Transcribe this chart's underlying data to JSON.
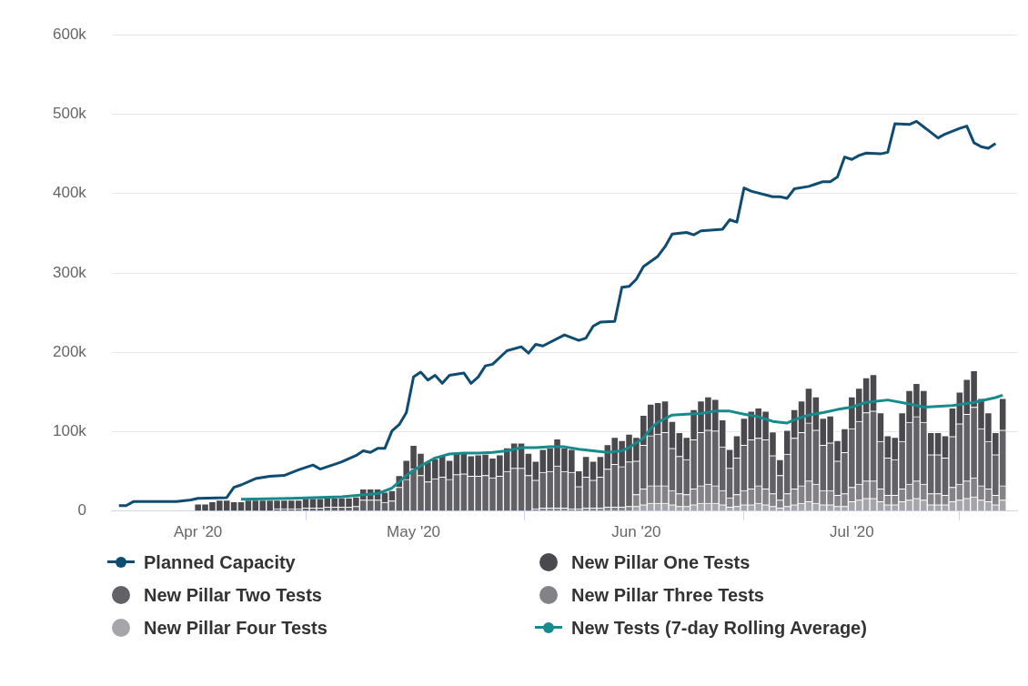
{
  "chart_data": {
    "type": "bar",
    "stacked": true,
    "grid": "y",
    "legend": "bottom",
    "x": [
      "2020-04-01",
      "2020-04-02",
      "2020-04-03",
      "2020-04-04",
      "2020-04-05",
      "2020-04-06",
      "2020-04-07",
      "2020-04-08",
      "2020-04-09",
      "2020-04-10",
      "2020-04-11",
      "2020-04-12",
      "2020-04-13",
      "2020-04-14",
      "2020-04-15",
      "2020-04-16",
      "2020-04-17",
      "2020-04-18",
      "2020-04-19",
      "2020-04-20",
      "2020-04-21",
      "2020-04-22",
      "2020-04-23",
      "2020-04-24",
      "2020-04-25",
      "2020-04-26",
      "2020-04-27",
      "2020-04-28",
      "2020-04-29",
      "2020-04-30",
      "2020-05-01",
      "2020-05-02",
      "2020-05-03",
      "2020-05-04",
      "2020-05-05",
      "2020-05-06",
      "2020-05-07",
      "2020-05-08",
      "2020-05-09",
      "2020-05-10",
      "2020-05-11",
      "2020-05-12",
      "2020-05-13",
      "2020-05-14",
      "2020-05-15",
      "2020-05-16",
      "2020-05-17",
      "2020-05-18",
      "2020-05-19",
      "2020-05-20",
      "2020-05-21",
      "2020-05-22",
      "2020-05-23",
      "2020-05-24",
      "2020-05-25",
      "2020-05-26",
      "2020-05-27",
      "2020-05-28",
      "2020-05-29",
      "2020-05-30",
      "2020-05-31",
      "2020-06-01",
      "2020-06-02",
      "2020-06-03",
      "2020-06-04",
      "2020-06-05",
      "2020-06-06",
      "2020-06-07",
      "2020-06-08",
      "2020-06-09",
      "2020-06-10",
      "2020-06-11",
      "2020-06-12",
      "2020-06-13",
      "2020-06-14",
      "2020-06-15",
      "2020-06-16",
      "2020-06-17",
      "2020-06-18",
      "2020-06-19",
      "2020-06-20",
      "2020-06-21",
      "2020-06-22",
      "2020-06-23",
      "2020-06-24",
      "2020-06-25",
      "2020-06-26",
      "2020-06-27",
      "2020-06-28",
      "2020-06-29",
      "2020-06-30",
      "2020-07-01",
      "2020-07-02",
      "2020-07-03",
      "2020-07-04",
      "2020-07-05",
      "2020-07-06",
      "2020-07-07",
      "2020-07-08",
      "2020-07-09",
      "2020-07-10",
      "2020-07-11",
      "2020-07-12",
      "2020-07-13",
      "2020-07-14",
      "2020-07-15",
      "2020-07-16",
      "2020-07-17",
      "2020-07-18",
      "2020-07-19",
      "2020-07-20",
      "2020-07-21",
      "2020-07-22"
    ],
    "xlim": [
      "2020-03-20",
      "2020-07-24"
    ],
    "xticks": [
      {
        "value": "2020-04-01",
        "label": "Apr '20"
      },
      {
        "value": "2020-05-01",
        "label": "May '20"
      },
      {
        "value": "2020-06-01",
        "label": "Jun '20"
      },
      {
        "value": "2020-07-01",
        "label": "Jul '20"
      }
    ],
    "ylim": [
      0,
      600000
    ],
    "yticks": [
      {
        "value": 0,
        "label": "0"
      },
      {
        "value": 100000,
        "label": "100k"
      },
      {
        "value": 200000,
        "label": "200k"
      },
      {
        "value": 300000,
        "label": "300k"
      },
      {
        "value": 400000,
        "label": "400k"
      },
      {
        "value": 500000,
        "label": "500k"
      },
      {
        "value": 600000,
        "label": "600k"
      }
    ],
    "series": [
      {
        "name": "Planned Capacity",
        "type": "line",
        "color": "#0f4c72",
        "x": [
          "2020-03-21",
          "2020-03-22",
          "2020-03-23",
          "2020-03-29",
          "2020-03-31",
          "2020-04-01",
          "2020-04-05",
          "2020-04-06",
          "2020-04-07",
          "2020-04-09",
          "2020-04-11",
          "2020-04-13",
          "2020-04-15",
          "2020-04-17",
          "2020-04-18",
          "2020-04-20",
          "2020-04-21",
          "2020-04-23",
          "2020-04-24",
          "2020-04-25",
          "2020-04-26",
          "2020-04-27",
          "2020-04-28",
          "2020-04-29",
          "2020-04-30",
          "2020-05-01",
          "2020-05-02",
          "2020-05-03",
          "2020-05-04",
          "2020-05-05",
          "2020-05-06",
          "2020-05-08",
          "2020-05-09",
          "2020-05-10",
          "2020-05-11",
          "2020-05-12",
          "2020-05-14",
          "2020-05-16",
          "2020-05-17",
          "2020-05-18",
          "2020-05-19",
          "2020-05-22",
          "2020-05-24",
          "2020-05-25",
          "2020-05-26",
          "2020-05-27",
          "2020-05-29",
          "2020-05-30",
          "2020-05-31",
          "2020-06-01",
          "2020-06-02",
          "2020-06-04",
          "2020-06-05",
          "2020-06-06",
          "2020-06-08",
          "2020-06-09",
          "2020-06-10",
          "2020-06-13",
          "2020-06-14",
          "2020-06-15",
          "2020-06-16",
          "2020-06-17",
          "2020-06-20",
          "2020-06-21",
          "2020-06-22",
          "2020-06-23",
          "2020-06-25",
          "2020-06-26",
          "2020-06-27",
          "2020-06-28",
          "2020-06-29",
          "2020-06-30",
          "2020-07-01",
          "2020-07-02",
          "2020-07-03",
          "2020-07-05",
          "2020-07-06",
          "2020-07-07",
          "2020-07-09",
          "2020-07-10",
          "2020-07-13",
          "2020-07-14",
          "2020-07-16",
          "2020-07-17",
          "2020-07-18",
          "2020-07-19",
          "2020-07-20",
          "2020-07-21"
        ],
        "values": [
          7000,
          7000,
          12000,
          12000,
          14000,
          16000,
          17000,
          30000,
          33000,
          41000,
          44000,
          45000,
          52000,
          58000,
          53000,
          59000,
          62000,
          70000,
          76000,
          74000,
          79000,
          79000,
          101000,
          109000,
          124000,
          169000,
          175000,
          165000,
          171000,
          161000,
          171000,
          174000,
          161000,
          169000,
          183000,
          185000,
          202000,
          207000,
          199000,
          210000,
          208000,
          222000,
          215000,
          218000,
          233000,
          238000,
          239000,
          282000,
          283000,
          292000,
          308000,
          321000,
          333000,
          349000,
          351000,
          348000,
          353000,
          355000,
          367000,
          364000,
          407000,
          403000,
          396000,
          396000,
          394000,
          406000,
          409000,
          412000,
          415000,
          415000,
          421000,
          446000,
          443000,
          448000,
          451000,
          450000,
          452000,
          488000,
          487000,
          491000,
          470000,
          475000,
          482000,
          485000,
          464000,
          459000,
          457000,
          463000
        ]
      },
      {
        "name": "New Pillar Four Tests",
        "color": "#a6a6aa",
        "values": [
          null,
          null,
          null,
          null,
          null,
          null,
          null,
          null,
          null,
          null,
          null,
          null,
          null,
          null,
          null,
          null,
          null,
          null,
          null,
          null,
          null,
          null,
          null,
          null,
          null,
          null,
          null,
          null,
          null,
          null,
          null,
          null,
          null,
          null,
          null,
          null,
          null,
          null,
          null,
          null,
          null,
          null,
          null,
          null,
          null,
          null,
          null,
          null,
          null,
          null,
          null,
          null,
          null,
          null,
          null,
          null,
          null,
          null,
          null,
          null,
          null,
          6000,
          8000,
          10000,
          10000,
          10000,
          8000,
          6000,
          6000,
          8000,
          10000,
          10000,
          10000,
          8000,
          5000,
          6000,
          8000,
          8000,
          10000,
          8000,
          6000,
          4000,
          6000,
          8000,
          10000,
          12000,
          10000,
          8000,
          8000,
          6000,
          6000,
          12000,
          14000,
          16000,
          16000,
          12000,
          8000,
          8000,
          12000,
          14000,
          16000,
          14000,
          8000,
          8000,
          8000,
          12000,
          14000,
          16000,
          18000,
          14000,
          12000,
          8000,
          14000
        ]
      },
      {
        "name": "New Pillar Three Tests",
        "color": "#838387",
        "values": [
          null,
          null,
          null,
          null,
          null,
          null,
          null,
          null,
          null,
          null,
          null,
          null,
          null,
          null,
          null,
          null,
          null,
          null,
          null,
          null,
          null,
          null,
          null,
          null,
          null,
          null,
          null,
          null,
          null,
          null,
          null,
          null,
          null,
          null,
          null,
          null,
          null,
          null,
          null,
          null,
          null,
          null,
          null,
          null,
          null,
          null,
          null,
          3000,
          4000,
          4000,
          4000,
          4000,
          3000,
          3000,
          4000,
          4000,
          4000,
          5000,
          5000,
          5000,
          6000,
          15000,
          20000,
          22000,
          22000,
          22000,
          18000,
          16000,
          15000,
          20000,
          22000,
          24000,
          22000,
          18000,
          12000,
          15000,
          18000,
          20000,
          22000,
          20000,
          16000,
          10000,
          16000,
          20000,
          22000,
          26000,
          24000,
          18000,
          18000,
          14000,
          16000,
          18000,
          20000,
          22000,
          22000,
          16000,
          12000,
          12000,
          16000,
          20000,
          22000,
          20000,
          14000,
          14000,
          12000,
          18000,
          20000,
          22000,
          24000,
          18000,
          16000,
          12000,
          18000
        ]
      },
      {
        "name": "New Pillar Two Tests",
        "color": "#626266",
        "values": [
          null,
          null,
          null,
          null,
          null,
          null,
          null,
          null,
          null,
          null,
          null,
          3000,
          3000,
          3000,
          3000,
          4000,
          4000,
          4000,
          5000,
          5000,
          5000,
          5000,
          6000,
          14000,
          14000,
          14000,
          11000,
          13000,
          30000,
          40000,
          53000,
          45000,
          37000,
          41000,
          43000,
          40000,
          46000,
          47000,
          44000,
          44000,
          45000,
          42000,
          44000,
          50000,
          54000,
          54000,
          45000,
          36000,
          45000,
          46000,
          53000,
          46000,
          46000,
          28000,
          39000,
          35000,
          39000,
          48000,
          54000,
          51000,
          56000,
          42000,
          55000,
          63000,
          65000,
          67000,
          53000,
          47000,
          44000,
          62000,
          67000,
          68000,
          69000,
          55000,
          37000,
          46000,
          57000,
          62000,
          60000,
          62000,
          48000,
          31000,
          50000,
          64000,
          67000,
          73000,
          68000,
          57000,
          60000,
          43000,
          52000,
          74000,
          79000,
          86000,
          88000,
          60000,
          47000,
          45000,
          60000,
          78000,
          81000,
          78000,
          49000,
          49000,
          47000,
          64000,
          76000,
          84000,
          89000,
          72000,
          60000,
          51000,
          70000
        ]
      },
      {
        "name": "New Pillar One Tests",
        "color": "#4a4a4e",
        "values": [
          9000,
          9000,
          12000,
          14000,
          14000,
          12000,
          12000,
          14000,
          14000,
          14000,
          14000,
          11000,
          11000,
          11000,
          11000,
          12000,
          12000,
          12000,
          12000,
          12000,
          12000,
          12000,
          12000,
          14000,
          14000,
          14000,
          13000,
          13000,
          15000,
          24000,
          30000,
          28000,
          25000,
          25000,
          27000,
          24000,
          28000,
          28000,
          26000,
          27000,
          27000,
          25000,
          27000,
          30000,
          32000,
          32000,
          28000,
          24000,
          29000,
          30000,
          34000,
          30000,
          29000,
          20000,
          26000,
          24000,
          26000,
          31000,
          34000,
          33000,
          35000,
          30000,
          38000,
          40000,
          40000,
          40000,
          34000,
          30000,
          28000,
          38000,
          40000,
          42000,
          40000,
          34000,
          24000,
          28000,
          34000,
          36000,
          38000,
          36000,
          30000,
          20000,
          30000,
          36000,
          40000,
          44000,
          42000,
          34000,
          34000,
          26000,
          30000,
          40000,
          42000,
          44000,
          46000,
          36000,
          28000,
          28000,
          36000,
          40000,
          42000,
          40000,
          28000,
          28000,
          28000,
          36000,
          40000,
          44000,
          46000,
          38000,
          36000,
          28000,
          40000
        ]
      },
      {
        "name": "New Tests (7-day Rolling Average)",
        "type": "line",
        "color": "#168a8c",
        "x": [
          "2020-04-07",
          "2020-04-14",
          "2020-04-21",
          "2020-04-26",
          "2020-04-28",
          "2020-04-29",
          "2020-04-30",
          "2020-05-02",
          "2020-05-04",
          "2020-05-06",
          "2020-05-08",
          "2020-05-10",
          "2020-05-12",
          "2020-05-14",
          "2020-05-16",
          "2020-05-18",
          "2020-05-20",
          "2020-05-22",
          "2020-05-24",
          "2020-05-26",
          "2020-05-28",
          "2020-05-30",
          "2020-05-31",
          "2020-06-02",
          "2020-06-03",
          "2020-06-04",
          "2020-06-06",
          "2020-06-08",
          "2020-06-10",
          "2020-06-12",
          "2020-06-14",
          "2020-06-16",
          "2020-06-18",
          "2020-06-20",
          "2020-06-22",
          "2020-06-23",
          "2020-06-25",
          "2020-06-27",
          "2020-06-29",
          "2020-07-01",
          "2020-07-03",
          "2020-07-06",
          "2020-07-09",
          "2020-07-11",
          "2020-07-15",
          "2020-07-18",
          "2020-07-21",
          "2020-07-22"
        ],
        "values": [
          15000,
          16000,
          18000,
          22000,
          29000,
          37000,
          45000,
          57000,
          67000,
          72000,
          73000,
          73000,
          74000,
          76000,
          80000,
          80000,
          81000,
          81000,
          78000,
          76000,
          74000,
          76000,
          80000,
          92000,
          104000,
          112000,
          121000,
          122000,
          123000,
          126000,
          126000,
          122000,
          119000,
          113000,
          111000,
          115000,
          121000,
          124000,
          128000,
          131000,
          137000,
          140000,
          135000,
          131000,
          133000,
          137000,
          143000,
          146000
        ]
      }
    ]
  }
}
